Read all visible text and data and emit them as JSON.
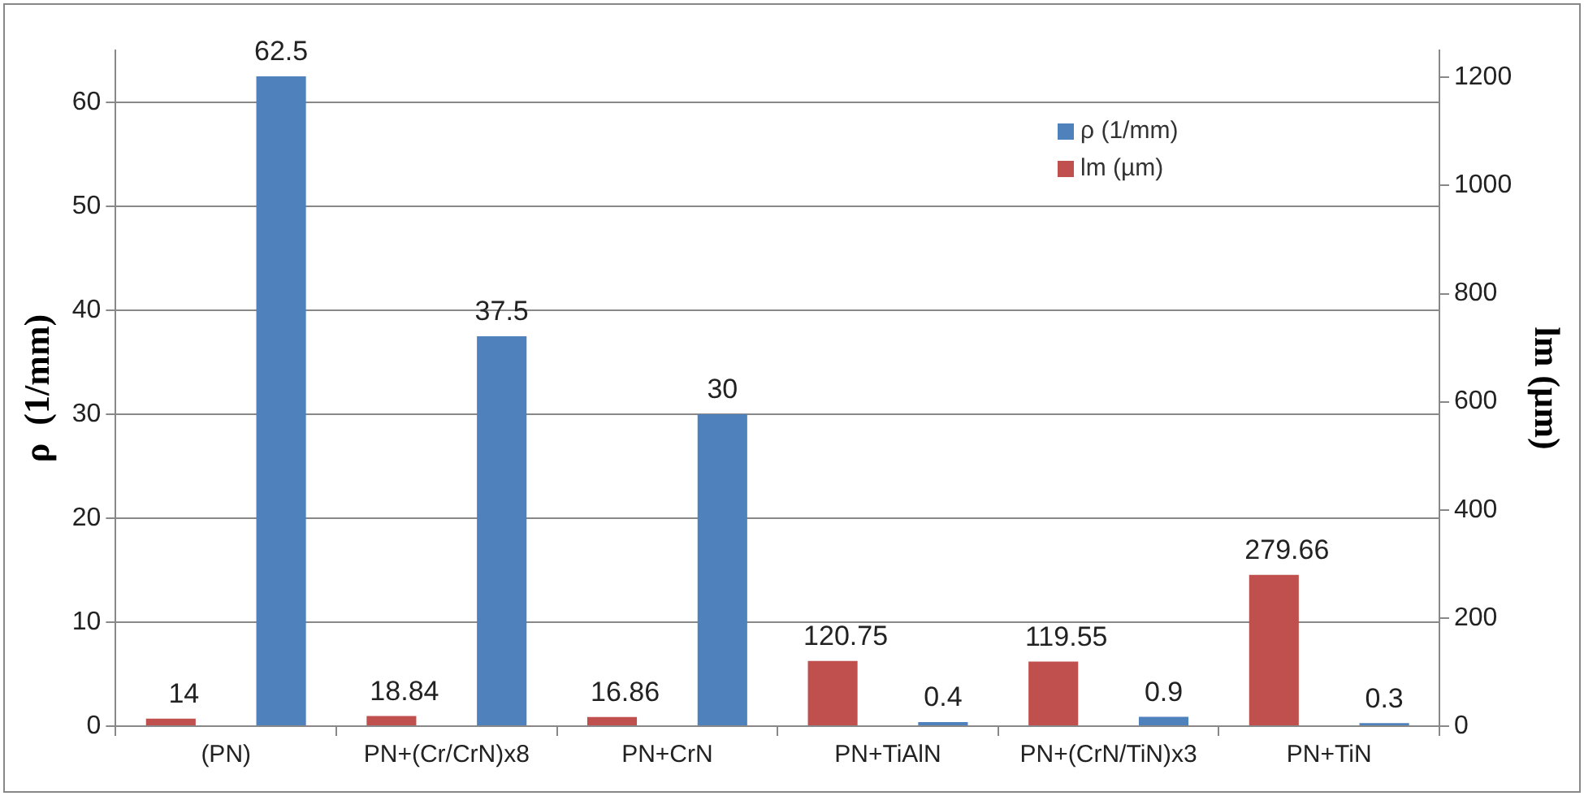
{
  "chart_data": {
    "type": "bar",
    "categories": [
      "(PN)",
      "PN+(Cr/CrN)x8",
      "PN+CrN",
      "PN+TiAlN",
      "PN+(CrN/TiN)x3",
      "PN+TiN"
    ],
    "series": [
      {
        "name": "ρ (1/mm)",
        "color": "#4f81bd",
        "values": [
          62.5,
          37.5,
          30,
          0.4,
          0.9,
          0.3
        ]
      },
      {
        "name": "lm (µm)",
        "color": "#c0504d",
        "axis": "y2",
        "values": [
          14,
          18.84,
          16.86,
          120.75,
          119.55,
          279.66
        ]
      }
    ],
    "ylabel": "ρ  (1/mm)",
    "y2label": "lm (µm)",
    "ylim": [
      0,
      65
    ],
    "yticks": [
      0,
      10,
      20,
      30,
      40,
      50,
      60
    ],
    "y2lim": [
      0,
      1250
    ],
    "y2ticks": [
      0,
      200,
      400,
      600,
      800,
      1000,
      1200
    ],
    "grid": "y",
    "legend": "top right",
    "data_labels": true
  }
}
